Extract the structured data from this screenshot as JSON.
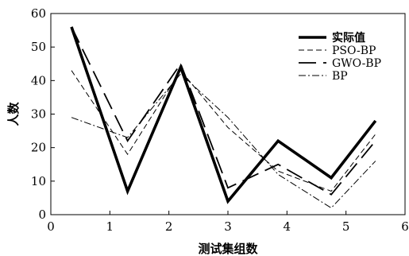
{
  "chart_data": {
    "type": "line",
    "xlabel": "测试集组数",
    "ylabel": "人数",
    "xlim": [
      0,
      6
    ],
    "ylim": [
      0,
      60
    ],
    "xticks": [
      "0",
      "1",
      "2",
      "3",
      "4",
      "5",
      "6"
    ],
    "yticks": [
      "0",
      "10",
      "20",
      "30",
      "40",
      "50",
      "60"
    ],
    "grid": false,
    "legend_position": "top-right",
    "series": [
      {
        "name": "实际值",
        "style": "solid-thick",
        "x": [
          0.35,
          1.3,
          2.2,
          3.0,
          3.85,
          4.75,
          5.5
        ],
        "y": [
          56,
          7,
          44,
          4,
          22,
          11,
          28
        ]
      },
      {
        "name": "PSO-BP",
        "style": "dashed-thin",
        "x": [
          0.35,
          1.3,
          2.2,
          3.0,
          3.85,
          4.75,
          5.5
        ],
        "y": [
          43,
          18,
          43,
          26,
          13,
          7,
          24
        ]
      },
      {
        "name": "GWO-BP",
        "style": "longdash-medium",
        "x": [
          0.35,
          1.3,
          2.2,
          3.0,
          3.85,
          4.75,
          5.5
        ],
        "y": [
          56,
          22,
          45,
          8,
          15,
          6,
          22
        ]
      },
      {
        "name": "BP",
        "style": "dashdot-thin",
        "x": [
          0.35,
          1.3,
          2.2,
          3.0,
          3.85,
          4.75,
          5.5
        ],
        "y": [
          29,
          23,
          42,
          29,
          12,
          2,
          16
        ]
      }
    ]
  }
}
